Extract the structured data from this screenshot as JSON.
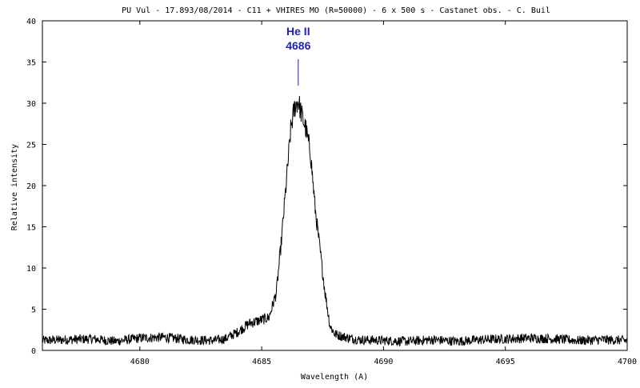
{
  "chart_data": {
    "type": "line",
    "title": "PU Vul - 17.893/08/2014 - C11 + VHIRES MO (R=50000) - 6 x 500 s - Castanet obs. - C. Buil",
    "xlabel": "Wavelength (A)",
    "ylabel": "Relative intensity",
    "xlim": [
      4676,
      4700
    ],
    "ylim": [
      0,
      40
    ],
    "x_ticks": [
      4680,
      4685,
      4690,
      4695,
      4700
    ],
    "y_ticks": [
      0,
      5,
      10,
      15,
      20,
      25,
      30,
      35,
      40
    ],
    "grid": false,
    "line_color": "#000000",
    "annotation": {
      "line1": "He II",
      "line2": "4686",
      "x": 4686.5,
      "color": "#1f1fbf"
    },
    "series": [
      {
        "x": [
          4676.0,
          4677.0,
          4678.0,
          4679.0,
          4680.0,
          4681.0,
          4682.0,
          4683.0,
          4683.5,
          4684.0,
          4684.5,
          4685.0,
          4685.3,
          4685.6,
          4685.8,
          4686.0,
          4686.2,
          4686.35,
          4686.5,
          4686.65,
          4686.8,
          4687.0,
          4687.2,
          4687.4,
          4687.6,
          4687.8,
          4688.0,
          4688.3,
          4688.6,
          4689.0,
          4690.0,
          4691.0,
          4692.0,
          4693.0,
          4694.0,
          4695.0,
          4696.0,
          4697.0,
          4698.0,
          4699.0,
          4700.0
        ],
        "values": [
          1.2,
          1.3,
          1.4,
          1.1,
          1.5,
          1.6,
          1.3,
          1.2,
          1.4,
          2.2,
          3.3,
          3.7,
          4.0,
          7.0,
          13.0,
          20.0,
          27.0,
          29.5,
          30.3,
          28.5,
          27.0,
          24.0,
          17.0,
          12.0,
          7.0,
          3.0,
          2.0,
          1.7,
          1.5,
          1.3,
          1.2,
          1.1,
          1.3,
          1.1,
          1.3,
          1.4,
          1.5,
          1.4,
          1.2,
          1.3,
          1.2
        ]
      }
    ]
  }
}
